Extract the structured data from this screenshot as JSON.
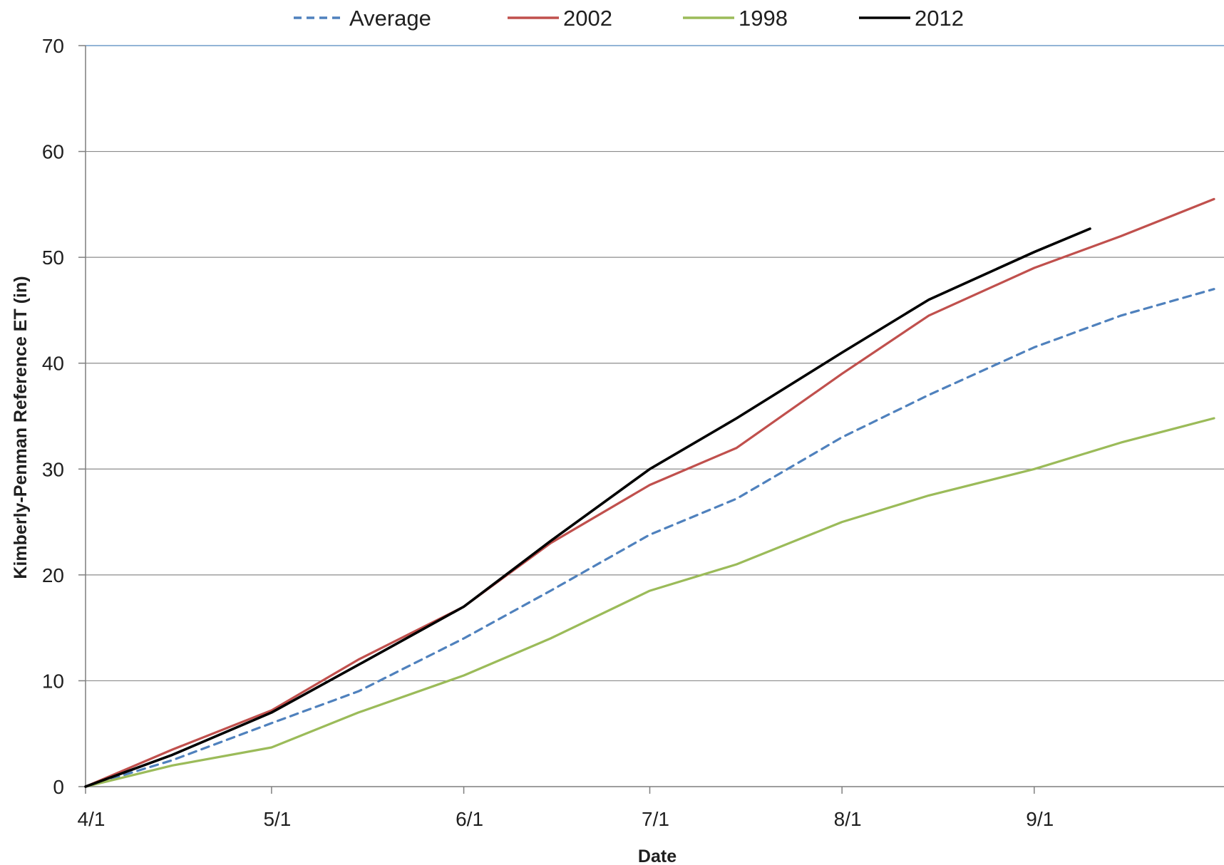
{
  "chart_data": {
    "type": "line",
    "title": "",
    "xlabel": "Date",
    "ylabel": "Kimberly-Penman Reference ET (in)",
    "x_tick_labels": [
      "4/1",
      "5/1",
      "6/1",
      "7/1",
      "8/1",
      "9/1"
    ],
    "y_tick_labels": [
      "0",
      "10",
      "20",
      "30",
      "40",
      "50",
      "60",
      "70"
    ],
    "xlim": [
      "4/1",
      "9/30"
    ],
    "ylim": [
      0,
      70
    ],
    "grid": "horizontal",
    "legend_position": "top",
    "series": [
      {
        "name": "Average",
        "color": "#4f81bd",
        "style": "dashed",
        "points": [
          [
            "4/1",
            0
          ],
          [
            "4/15",
            2.5
          ],
          [
            "5/1",
            6.0
          ],
          [
            "5/15",
            9.0
          ],
          [
            "6/1",
            14.0
          ],
          [
            "6/15",
            18.5
          ],
          [
            "7/1",
            23.8
          ],
          [
            "7/15",
            27.2
          ],
          [
            "8/1",
            33.0
          ],
          [
            "8/15",
            37.0
          ],
          [
            "9/1",
            41.5
          ],
          [
            "9/15",
            44.5
          ],
          [
            "9/30",
            47.0
          ]
        ]
      },
      {
        "name": "2002",
        "color": "#c0504d",
        "style": "solid",
        "points": [
          [
            "4/1",
            0
          ],
          [
            "4/15",
            3.5
          ],
          [
            "5/1",
            7.2
          ],
          [
            "5/15",
            12.0
          ],
          [
            "6/1",
            17.0
          ],
          [
            "6/15",
            23.0
          ],
          [
            "7/1",
            28.5
          ],
          [
            "7/15",
            32.0
          ],
          [
            "8/1",
            39.0
          ],
          [
            "8/15",
            44.5
          ],
          [
            "9/1",
            49.0
          ],
          [
            "9/15",
            52.0
          ],
          [
            "9/30",
            55.5
          ]
        ]
      },
      {
        "name": "1998",
        "color": "#9bbb59",
        "style": "solid",
        "points": [
          [
            "4/1",
            0
          ],
          [
            "4/15",
            2.0
          ],
          [
            "5/1",
            3.7
          ],
          [
            "5/15",
            7.0
          ],
          [
            "6/1",
            10.5
          ],
          [
            "6/15",
            14.0
          ],
          [
            "7/1",
            18.5
          ],
          [
            "7/15",
            21.0
          ],
          [
            "8/1",
            25.0
          ],
          [
            "8/15",
            27.5
          ],
          [
            "9/1",
            30.0
          ],
          [
            "9/15",
            32.5
          ],
          [
            "9/30",
            34.8
          ]
        ]
      },
      {
        "name": "2012",
        "color": "#000000",
        "style": "solid",
        "points": [
          [
            "4/1",
            0
          ],
          [
            "4/15",
            3.0
          ],
          [
            "5/1",
            7.0
          ],
          [
            "5/15",
            11.5
          ],
          [
            "6/1",
            17.0
          ],
          [
            "6/15",
            23.2
          ],
          [
            "7/1",
            30.0
          ],
          [
            "7/15",
            34.8
          ],
          [
            "8/1",
            41.0
          ],
          [
            "8/15",
            46.0
          ],
          [
            "9/1",
            50.5
          ],
          [
            "9/10",
            52.7
          ]
        ]
      }
    ]
  }
}
